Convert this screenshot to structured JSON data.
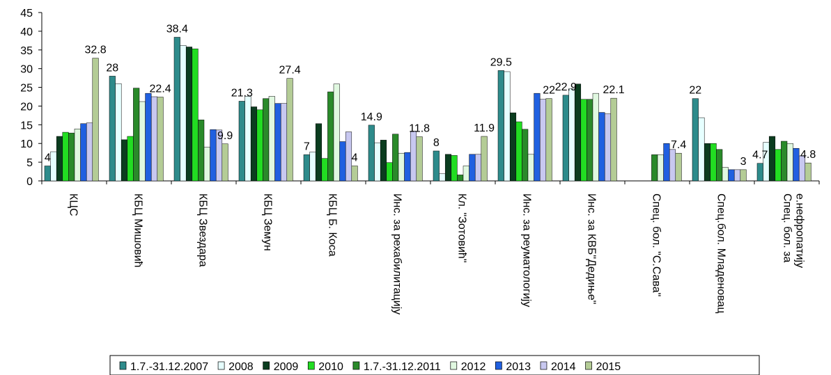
{
  "chart_data": {
    "type": "bar",
    "ylim": [
      0,
      45
    ],
    "yticks": [
      0,
      5,
      10,
      15,
      20,
      25,
      30,
      35,
      40,
      45
    ],
    "categories": [
      "КЦС",
      "КБЦ Мишовић",
      "КБЦ Звездара",
      "КБЦ Земун",
      "КБЦ Б. Коса",
      "Инс. за рехабилитацију",
      "Кл. \"Зотовић\"",
      "Инс. за реуматологију",
      "Инс. за КВБ\"Дедиње\"",
      "Спец. бол. \"С.Сава\"",
      "Спец.бол. Младеновац",
      "Спец. бол. за е.нефропатију"
    ],
    "series": [
      {
        "name": "1.7.-31.12.2007",
        "color": "#2e8b8b",
        "values": [
          4,
          28,
          38.4,
          21.3,
          7,
          14.9,
          8,
          29.5,
          22.9,
          null,
          22,
          4.7
        ]
      },
      {
        "name": "2008",
        "color": "#e6ffff",
        "values": [
          7.8,
          26,
          36.2,
          22.6,
          7.7,
          10.2,
          1.9,
          29.2,
          24.7,
          null,
          16.9,
          10.3
        ]
      },
      {
        "name": "2009",
        "color": "#0b3d1f",
        "values": [
          11.9,
          11,
          35.8,
          19.8,
          15.3,
          10.9,
          7.1,
          18.2,
          25.9,
          null,
          10,
          11.9
        ]
      },
      {
        "name": "2010",
        "color": "#22dd22",
        "values": [
          13,
          11.9,
          35.3,
          19,
          6,
          4.9,
          6.8,
          15.8,
          21.8,
          null,
          10,
          8.4
        ]
      },
      {
        "name": "1.7.-31.12.2011",
        "color": "#2a8a2a",
        "values": [
          12.8,
          24.8,
          16.3,
          22,
          23.8,
          12.5,
          1.6,
          13.8,
          21.8,
          7,
          8.4,
          10.6
        ]
      },
      {
        "name": "2012",
        "color": "#e0f8e0",
        "values": [
          13.9,
          21.2,
          9,
          22.6,
          25.9,
          7.4,
          4,
          7.1,
          23.4,
          7,
          3.6,
          10
        ]
      },
      {
        "name": "2013",
        "color": "#2060e0",
        "values": [
          15.3,
          23.4,
          13.7,
          20.7,
          10.5,
          7.6,
          7.1,
          23.4,
          18.3,
          10,
          3,
          8.7
        ]
      },
      {
        "name": "2014",
        "color": "#c8c8f0",
        "values": [
          15.5,
          22.5,
          13.6,
          20.7,
          13.1,
          13.3,
          7.1,
          21.8,
          17.9,
          8.4,
          3,
          6.7
        ]
      },
      {
        "name": "2015",
        "color": "#b4cc96",
        "values": [
          32.8,
          22.4,
          9.9,
          27.4,
          4,
          11.8,
          11.9,
          22,
          22.1,
          7.4,
          3,
          4.8
        ]
      }
    ],
    "data_labels": [
      {
        "cat": 0,
        "series": 0,
        "text": "4"
      },
      {
        "cat": 0,
        "series": 8,
        "text": "32.8"
      },
      {
        "cat": 1,
        "series": 0,
        "text": "28"
      },
      {
        "cat": 1,
        "series": 8,
        "text": "22.4"
      },
      {
        "cat": 2,
        "series": 0,
        "text": "38.4"
      },
      {
        "cat": 2,
        "series": 8,
        "text": "9.9"
      },
      {
        "cat": 3,
        "series": 0,
        "text": "21.3"
      },
      {
        "cat": 3,
        "series": 8,
        "text": "27.4"
      },
      {
        "cat": 4,
        "series": 0,
        "text": "7"
      },
      {
        "cat": 4,
        "series": 8,
        "text": "4"
      },
      {
        "cat": 5,
        "series": 0,
        "text": "14.9"
      },
      {
        "cat": 5,
        "series": 8,
        "text": "11.8"
      },
      {
        "cat": 6,
        "series": 0,
        "text": "8"
      },
      {
        "cat": 6,
        "series": 8,
        "text": "11.9"
      },
      {
        "cat": 7,
        "series": 0,
        "text": "29.5"
      },
      {
        "cat": 7,
        "series": 8,
        "text": "22"
      },
      {
        "cat": 8,
        "series": 0,
        "text": "22.9"
      },
      {
        "cat": 8,
        "series": 8,
        "text": "22.1"
      },
      {
        "cat": 9,
        "series": 8,
        "text": "7.4"
      },
      {
        "cat": 10,
        "series": 0,
        "text": "22"
      },
      {
        "cat": 10,
        "series": 8,
        "text": "3"
      },
      {
        "cat": 11,
        "series": 0,
        "text": "4.7"
      },
      {
        "cat": 11,
        "series": 8,
        "text": "4.8"
      }
    ],
    "legend_position": "bottom",
    "grid": false
  }
}
